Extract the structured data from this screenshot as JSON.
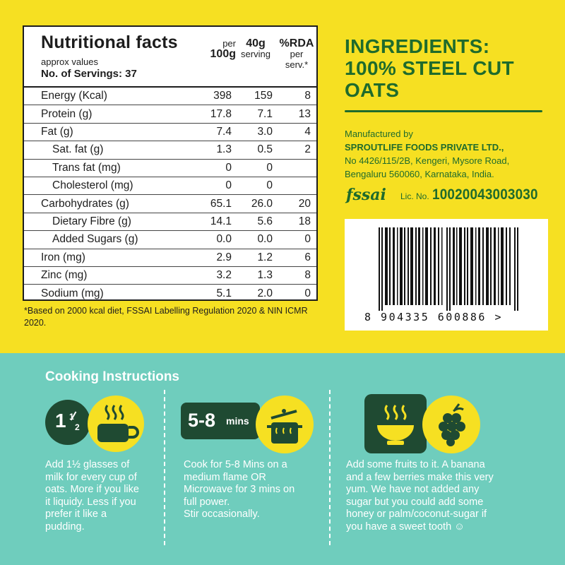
{
  "nutrition": {
    "title": "Nutritional facts",
    "approx": "approx values",
    "servings": "No. of Servings: 37",
    "col1": {
      "line1": "per",
      "line2": "100g"
    },
    "col2": {
      "line1": "40g",
      "line2": "serving"
    },
    "col3": {
      "line1": "%RDA",
      "line2": "per",
      "line3": "serv.*"
    },
    "rows": [
      {
        "label": "Energy (Kcal)",
        "per100": "398",
        "serving": "159",
        "rda": "8"
      },
      {
        "label": "Protein (g)",
        "per100": "17.8",
        "serving": "7.1",
        "rda": "13"
      },
      {
        "label": "Fat (g)",
        "per100": "7.4",
        "serving": "3.0",
        "rda": "4"
      },
      {
        "label": "Sat. fat (g)",
        "per100": "1.3",
        "serving": "0.5",
        "rda": "2"
      },
      {
        "label": "Trans fat (mg)",
        "per100": "0",
        "serving": "0",
        "rda": ""
      },
      {
        "label": "Cholesterol (mg)",
        "per100": "0",
        "serving": "0",
        "rda": ""
      },
      {
        "label": "Carbohydrates (g)",
        "per100": "65.1",
        "serving": "26.0",
        "rda": "20"
      },
      {
        "label": "Dietary Fibre (g)",
        "per100": "14.1",
        "serving": "5.6",
        "rda": "18"
      },
      {
        "label": "Added Sugars (g)",
        "per100": "0.0",
        "serving": "0.0",
        "rda": "0"
      },
      {
        "label": "Iron (mg)",
        "per100": "2.9",
        "serving": "1.2",
        "rda": "6"
      },
      {
        "label": "Zinc (mg)",
        "per100": "3.2",
        "serving": "1.3",
        "rda": "8"
      },
      {
        "label": "Sodium (mg)",
        "per100": "5.1",
        "serving": "2.0",
        "rda": "0"
      }
    ],
    "footnote": "*Based on 2000 kcal diet, FSSAI Labelling Regulation 2020 & NIN ICMR 2020."
  },
  "ingredients": {
    "line1": "INGREDIENTS:",
    "line2": "100% STEEL CUT",
    "line3": "OATS"
  },
  "manufacturer": {
    "label": "Manufactured by",
    "name": "SPROUTLIFE FOODS PRIVATE LTD.,",
    "addr1": "No 4426/115/2B, Kengeri, Mysore Road,",
    "addr2": "Bengaluru 560060, Karnataka, India.",
    "fssai": "fssai",
    "lic_label": "Lic. No.",
    "lic_no": "10020043003030"
  },
  "barcode": {
    "number": "8 904335 600886 >"
  },
  "cooking": {
    "title": "Cooking Instructions",
    "step1": {
      "badge_whole": "1",
      "badge_num": "1",
      "badge_den": "2",
      "icon": "cup-icon",
      "lines": [
        "Add 1½ glasses of",
        "milk for every cup of",
        "oats. More if you like",
        "it liquidy. Less if you",
        "prefer it like a",
        "pudding."
      ]
    },
    "step2": {
      "badge_num": "5-8",
      "badge_unit": "mins",
      "icon": "pot-icon",
      "lines": [
        "Cook for 5-8 Mins on a",
        "medium flame OR",
        "Microwave for 3 mins on",
        "full power.",
        "Stir occasionally."
      ]
    },
    "step3": {
      "icon_bowl": "bowl-icon",
      "icon_fruit": "berry-icon",
      "lines": [
        "Add some fruits to it. A banana",
        "and a few berries make this very",
        "yum. We have not added any",
        "sugar but you could add some",
        "honey or palm/coconut-sugar if",
        "you have a sweet tooth ☺"
      ]
    }
  },
  "colors": {
    "yellow": "#f6e022",
    "teal": "#6fcdbd",
    "green": "#1f6b2c",
    "dark": "#1f4a32"
  }
}
